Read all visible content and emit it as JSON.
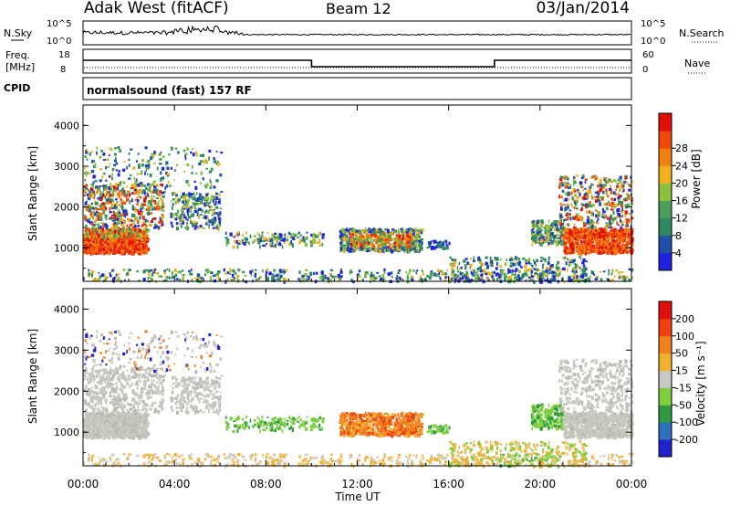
{
  "header": {
    "station": "Adak West (fitACF)",
    "beam": "Beam 12",
    "date": "03/Jan/2014"
  },
  "strips": {
    "nsky_label": "N.Sky",
    "nsky_top_tick": "10^5",
    "nsky_bottom_tick": "10^0",
    "nsearch_label": "N.Search",
    "nsearch_top_tick": "10^5",
    "nsearch_bottom_tick": "10^0",
    "freq_label_1": "Freq.",
    "freq_label_2": "[MHz]",
    "freq_top_tick": "18",
    "freq_bottom_tick": "8",
    "nave_label": "Nave",
    "nave_top_tick": "60",
    "nave_bottom_tick": "0",
    "cpid_label": "CPID",
    "cpid_text": "normalsound (fast) 157 RF"
  },
  "chart_data": [
    {
      "type": "heatmap",
      "panel": "power",
      "ylabel": "Slant Range [km]",
      "ylim": [
        180,
        4500
      ],
      "yticks": [
        "1000",
        "2000",
        "3000",
        "4000"
      ],
      "colorbar": {
        "label": "Power [dB]",
        "ticks": [
          "4",
          "8",
          "12",
          "16",
          "20",
          "24",
          "28"
        ],
        "colors": [
          "#2020e0",
          "#1f50a8",
          "#2e8a5e",
          "#4aa05a",
          "#8ac03c",
          "#f0b020",
          "#f08010",
          "#f04808",
          "#e01008"
        ]
      }
    },
    {
      "type": "heatmap",
      "panel": "velocity",
      "ylabel": "Slant Range [km]",
      "ylim": [
        180,
        4500
      ],
      "yticks": [
        "1000",
        "2000",
        "3000",
        "4000"
      ],
      "colorbar": {
        "label": "Velocity [m s⁻¹]",
        "ticks": [
          "200",
          "100",
          "50",
          "15",
          "-15",
          "-50",
          "-100",
          "-200"
        ],
        "colors": [
          "#2222cc",
          "#2b6fbd",
          "#2f9a40",
          "#7ed040",
          "#c8c8c0",
          "#f0b030",
          "#f08020",
          "#f04010",
          "#e01010"
        ]
      }
    }
  ],
  "time_axis": {
    "label": "Time UT",
    "ticks": [
      "00:00",
      "04:00",
      "08:00",
      "12:00",
      "16:00",
      "20:00",
      "00:00"
    ],
    "start_hour": 0,
    "end_hour": 24
  }
}
